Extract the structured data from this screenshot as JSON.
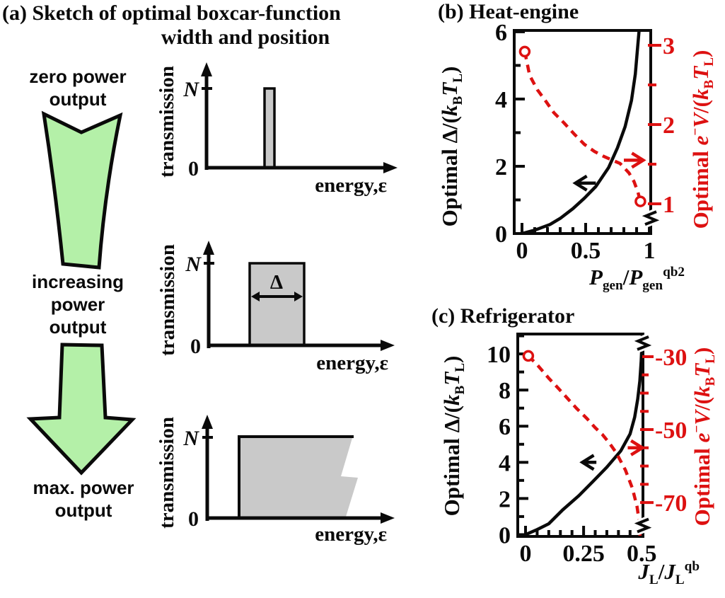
{
  "colors": {
    "ink": "#0a0a0a",
    "red": "#dd1111",
    "green": "#b4f0a8",
    "gray": "#c9c9c9"
  },
  "panel_a": {
    "title_line1": "(a) Sketch of optimal boxcar-function",
    "title_line2": "width and position",
    "zero_power": [
      "zero power",
      "output"
    ],
    "increasing": [
      "increasing",
      "power",
      "output"
    ],
    "max_power": [
      "max. power",
      "output"
    ],
    "mini": {
      "ylabel": "transmission",
      "xlabel": "energy,ε",
      "top_tick": "N",
      "zero_tick": "0",
      "width_symbol": "Δ"
    }
  },
  "chart_data": [
    {
      "id": "heat-engine",
      "type": "line",
      "title": "(b) Heat-engine",
      "x_axis": {
        "label": "P_gen / P_gen^qb2",
        "label_segments": [
          [
            "P",
            "i"
          ],
          [
            "gen",
            "sub"
          ],
          [
            "/",
            ""
          ],
          [
            "P",
            "i"
          ],
          [
            "gen",
            "sub"
          ],
          [
            "qb2",
            "sup"
          ]
        ],
        "ticks": [
          "0",
          "0.5",
          "1"
        ],
        "tick_values": [
          0,
          0.5,
          1
        ],
        "minor_step": 0.1,
        "range": [
          -0.061,
          1.011
        ]
      },
      "y_left": {
        "label": "Optimal Δ/(k_B T_L)",
        "label_segments": [
          [
            "Optimal Δ/(",
            ""
          ],
          [
            "k",
            "i"
          ],
          [
            "B",
            "sub"
          ],
          [
            "T",
            "i"
          ],
          [
            "L",
            "sub"
          ],
          [
            ")",
            ""
          ]
        ],
        "ticks": [
          "0",
          "2",
          "4",
          "6"
        ],
        "tick_values": [
          0,
          2,
          4,
          6
        ],
        "minor_step": 1,
        "range": [
          0,
          6.04
        ],
        "color": "#0a0a0a"
      },
      "y_right": {
        "label": "Optimal e⁻V/(k_B T_L)",
        "label_segments": [
          [
            "Optimal ",
            ""
          ],
          [
            "e",
            "i"
          ],
          [
            "−",
            "sup"
          ],
          [
            "V",
            "i"
          ],
          [
            "/(",
            ""
          ],
          [
            "k",
            "i"
          ],
          [
            "B",
            "sub"
          ],
          [
            "T",
            "i"
          ],
          [
            "L",
            "sub"
          ],
          [
            ")",
            ""
          ]
        ],
        "ticks": [
          "1",
          "2",
          "3"
        ],
        "tick_values": [
          1,
          2,
          3
        ],
        "minor_step": 0.5,
        "range": [
          0.625,
          3.187
        ],
        "color": "#dd1111",
        "breaks": [
          0.82
        ]
      },
      "series": [
        {
          "name": "optimal-delta",
          "axis": "left",
          "color": "#0a0a0a",
          "style": "solid",
          "points": [
            [
              0,
              0
            ],
            [
              0.1,
              0.1
            ],
            [
              0.22,
              0.27
            ],
            [
              0.3,
              0.45
            ],
            [
              0.4,
              0.74
            ],
            [
              0.49,
              1.05
            ],
            [
              0.58,
              1.4
            ],
            [
              0.68,
              1.96
            ],
            [
              0.75,
              2.55
            ],
            [
              0.81,
              3.18
            ],
            [
              0.86,
              3.96
            ],
            [
              0.89,
              4.74
            ],
            [
              0.905,
              5.4
            ],
            [
              0.92,
              6.05
            ]
          ]
        },
        {
          "name": "optimal-bias",
          "axis": "right",
          "color": "#dd1111",
          "style": "dashed",
          "markers": "both",
          "points": [
            [
              0.022,
              2.92
            ],
            [
              0.06,
              2.62
            ],
            [
              0.12,
              2.44
            ],
            [
              0.18,
              2.31
            ],
            [
              0.25,
              2.15
            ],
            [
              0.33,
              2.02
            ],
            [
              0.41,
              1.88
            ],
            [
              0.49,
              1.75
            ],
            [
              0.57,
              1.66
            ],
            [
              0.64,
              1.6
            ],
            [
              0.71,
              1.55
            ],
            [
              0.77,
              1.51
            ],
            [
              0.84,
              1.39
            ],
            [
              0.88,
              1.28
            ],
            [
              0.91,
              1.15
            ],
            [
              0.93,
              1.03
            ]
          ]
        }
      ],
      "annotations": [
        {
          "kind": "arrow",
          "direction": "left",
          "color": "#0a0a0a",
          "axis": "left",
          "y": 1.5,
          "x_from": 0.58,
          "x_to": 0.42
        },
        {
          "kind": "arrow",
          "direction": "right",
          "color": "#dd1111",
          "axis": "right",
          "y": 1.55,
          "x_from": 0.8,
          "x_to": 0.952
        }
      ]
    },
    {
      "id": "refrigerator",
      "type": "line",
      "title": "(c) Refrigerator",
      "x_axis": {
        "label": "J_L / J_L^qb",
        "label_segments": [
          [
            "J",
            "i"
          ],
          [
            "L",
            "sub"
          ],
          [
            "/",
            ""
          ],
          [
            "J",
            "i"
          ],
          [
            "L",
            "sub"
          ],
          [
            "qb",
            "sup"
          ]
        ],
        "ticks": [
          "0",
          "0.25",
          "0.5"
        ],
        "tick_values": [
          0,
          0.25,
          0.5
        ],
        "minor_step": 0.05,
        "range": [
          -0.0335,
          0.5055
        ]
      },
      "y_left": {
        "label": "Optimal Δ/(k_B T_L)",
        "label_segments": [
          [
            "Optimal Δ/(",
            ""
          ],
          [
            "k",
            "i"
          ],
          [
            "B",
            "sub"
          ],
          [
            "T",
            "i"
          ],
          [
            "L",
            "sub"
          ],
          [
            ")",
            ""
          ]
        ],
        "ticks": [
          "0",
          "2",
          "4",
          "6",
          "8",
          "10"
        ],
        "tick_values": [
          0,
          2,
          4,
          6,
          8,
          10
        ],
        "minor_step": 1,
        "range": [
          -0.1,
          11.1
        ],
        "color": "#0a0a0a"
      },
      "y_right": {
        "label": "Optimal e⁻V/(k_B T_L)",
        "label_segments": [
          [
            "Optimal ",
            ""
          ],
          [
            "e",
            "i"
          ],
          [
            "−",
            "sup"
          ],
          [
            "V",
            "i"
          ],
          [
            "/(",
            ""
          ],
          [
            "k",
            "i"
          ],
          [
            "B",
            "sub"
          ],
          [
            "T",
            "i"
          ],
          [
            "L",
            "sub"
          ],
          [
            ")",
            ""
          ]
        ],
        "ticks": [
          "-30",
          "-50",
          "-70"
        ],
        "tick_values": [
          -30,
          -50,
          -70
        ],
        "minor_step": 5,
        "range": [
          -79.3,
          -23.8
        ],
        "color": "#dd1111",
        "breaks": [
          -26.3,
          -76.3
        ]
      },
      "series": [
        {
          "name": "optimal-delta",
          "axis": "left",
          "color": "#0a0a0a",
          "style": "solid",
          "points": [
            [
              0,
              0
            ],
            [
              0.05,
              0.28
            ],
            [
              0.1,
              0.6
            ],
            [
              0.16,
              1.37
            ],
            [
              0.23,
              2.16
            ],
            [
              0.29,
              2.94
            ],
            [
              0.35,
              3.73
            ],
            [
              0.41,
              4.63
            ],
            [
              0.45,
              5.57
            ],
            [
              0.47,
              6.5
            ],
            [
              0.483,
              7.5
            ],
            [
              0.492,
              8.5
            ],
            [
              0.498,
              9.6
            ],
            [
              0.503,
              11.1
            ]
          ]
        },
        {
          "name": "optimal-bias",
          "axis": "right",
          "color": "#dd1111",
          "style": "dashed",
          "markers": "start",
          "points": [
            [
              0.012,
              -29.8
            ],
            [
              0.05,
              -32.2
            ],
            [
              0.1,
              -35.9
            ],
            [
              0.14,
              -38.6
            ],
            [
              0.18,
              -41.4
            ],
            [
              0.22,
              -44.2
            ],
            [
              0.265,
              -47
            ],
            [
              0.3,
              -49.5
            ],
            [
              0.33,
              -51.3
            ],
            [
              0.36,
              -53.6
            ],
            [
              0.39,
              -56.3
            ],
            [
              0.43,
              -61.1
            ],
            [
              0.46,
              -66.1
            ],
            [
              0.48,
              -71.1
            ],
            [
              0.49,
              -75.4
            ],
            [
              0.493,
              -79.3
            ]
          ]
        }
      ],
      "annotations": [
        {
          "kind": "arrow",
          "direction": "left",
          "color": "#0a0a0a",
          "axis": "left",
          "y": 4.0,
          "x_from": 0.305,
          "x_to": 0.245
        },
        {
          "kind": "arrow",
          "direction": "right",
          "color": "#dd1111",
          "axis": "right",
          "y": -55,
          "x_from": 0.44,
          "x_to": 0.503
        }
      ]
    }
  ]
}
